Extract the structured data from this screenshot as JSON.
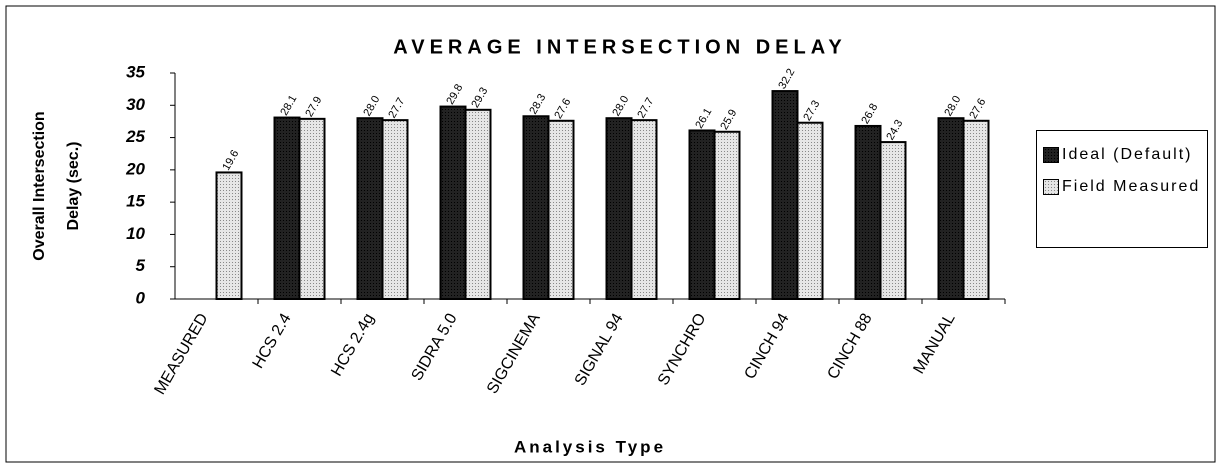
{
  "chart_data": {
    "type": "bar",
    "title": "AVERAGE INTERSECTION DELAY",
    "x_label": "Analysis Type",
    "y_label": [
      "Overall Intersection",
      "Delay (sec.)"
    ],
    "categories": [
      "MEASURED",
      "HCS 2.4",
      "HCS 2.4g",
      "SIDRA 5.0",
      "SIGCINEMA",
      "SIGNAL 94",
      "SYNCHRO",
      "CINCH 94",
      "CINCH 88",
      "MANUAL"
    ],
    "series": [
      {
        "name": "Ideal (Default)",
        "color": "#222222",
        "values": [
          null,
          28.1,
          28,
          29.8,
          28.3,
          28,
          26.1,
          32.2,
          26.8,
          28
        ],
        "value_labels": [
          null,
          "28.1",
          "28.0",
          "29.8",
          "28.3",
          "28.0",
          "26.1",
          "32.2",
          "26.8",
          "28.0"
        ]
      },
      {
        "name": "Field Measured",
        "color": "#e6e6e6",
        "values": [
          19.6,
          27.9,
          27.7,
          29.3,
          27.6,
          27.7,
          25.9,
          27.3,
          24.3,
          27.6
        ],
        "value_labels": [
          "19.6",
          "27.9",
          "27.7",
          "29.3",
          "27.6",
          "27.7",
          "25.9",
          "27.3",
          "24.3",
          "27.6"
        ]
      }
    ],
    "ylim": [
      0,
      35
    ],
    "yticks": [
      0,
      5,
      10,
      15,
      20,
      25,
      30,
      35
    ],
    "grid": false,
    "legend": "right"
  }
}
